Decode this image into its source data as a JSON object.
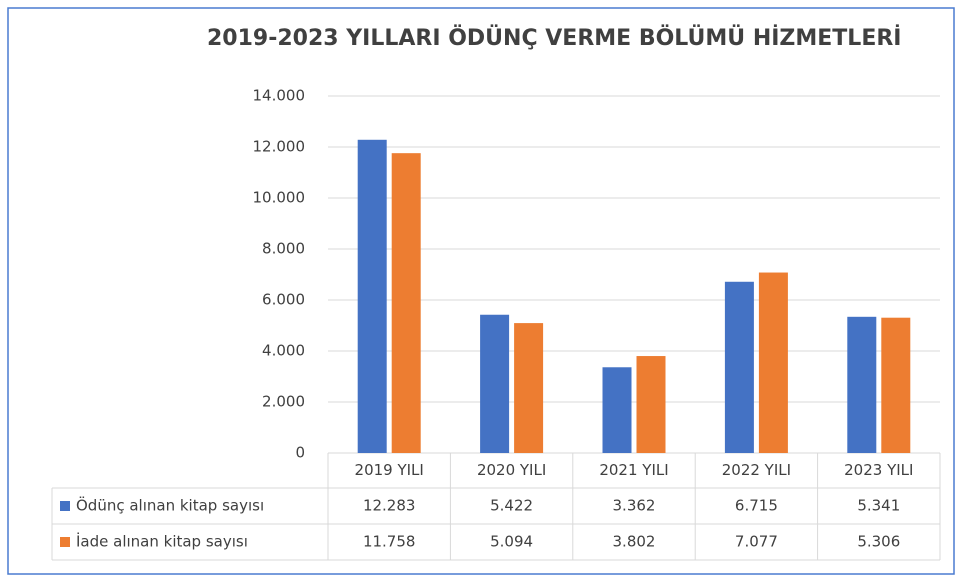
{
  "chart_data": {
    "type": "bar",
    "title": "2019-2023 YILLARI ÖDÜNÇ VERME BÖLÜMÜ HİZMETLERİ",
    "categories": [
      "2019 YILI",
      "2020 YILI",
      "2021 YILI",
      "2022 YILI",
      "2023 YILI"
    ],
    "series": [
      {
        "name": "Ödünç alınan kitap sayısı",
        "color": "#4472c4",
        "values": [
          12283,
          5422,
          3362,
          6715,
          5341
        ],
        "value_labels": [
          "12.283",
          "5.422",
          "3.362",
          "6.715",
          "5.341"
        ]
      },
      {
        "name": "İade alınan kitap sayısı",
        "color": "#ed7d31",
        "values": [
          11758,
          5094,
          3802,
          7077,
          5306
        ],
        "value_labels": [
          "11.758",
          "5.094",
          "3.802",
          "7.077",
          "5.306"
        ]
      }
    ],
    "ylim": [
      0,
      14000
    ],
    "yticks": [
      0,
      {
        "value": 2000,
        "label": "2.000"
      },
      {
        "value": 4000,
        "label": "4.000"
      },
      {
        "value": 6000,
        "label": "6.000"
      },
      {
        "value": 8000,
        "label": "8.000"
      },
      {
        "value": 10000,
        "label": "10.000"
      },
      {
        "value": 12000,
        "label": "12.000"
      },
      {
        "value": 14000,
        "label": "14.000"
      }
    ],
    "grid": true
  }
}
